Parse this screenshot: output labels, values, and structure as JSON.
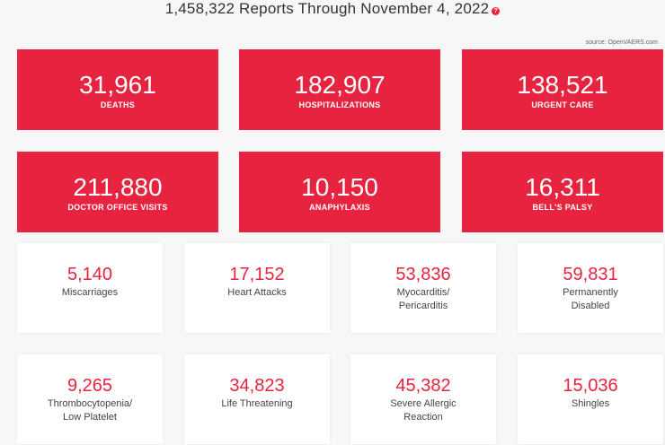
{
  "header": {
    "title": "1,458,322 Reports Through November 4, 2022",
    "help_icon_glyph": "?",
    "source": "source: OpenVAERS.com"
  },
  "colors": {
    "accent": "#e8233f"
  },
  "red_cards": [
    {
      "value": "31,961",
      "label": "DEATHS"
    },
    {
      "value": "182,907",
      "label": "HOSPITALIZATIONS"
    },
    {
      "value": "138,521",
      "label": "URGENT CARE"
    },
    {
      "value": "211,880",
      "label": "DOCTOR OFFICE VISITS"
    },
    {
      "value": "10,150",
      "label": "ANAPHYLAXIS"
    },
    {
      "value": "16,311",
      "label": "BELL'S PALSY"
    }
  ],
  "white_cards": [
    {
      "value": "5,140",
      "label": "Miscarriages"
    },
    {
      "value": "17,152",
      "label": "Heart Attacks"
    },
    {
      "value": "53,836",
      "label": "Myocarditis/\nPericarditis"
    },
    {
      "value": "59,831",
      "label": "Permanently\nDisabled"
    },
    {
      "value": "9,265",
      "label": "Thrombocytopenia/\nLow Platelet"
    },
    {
      "value": "34,823",
      "label": "Life Threatening"
    },
    {
      "value": "45,382",
      "label": "Severe Allergic\nReaction"
    },
    {
      "value": "15,036",
      "label": "Shingles"
    }
  ]
}
